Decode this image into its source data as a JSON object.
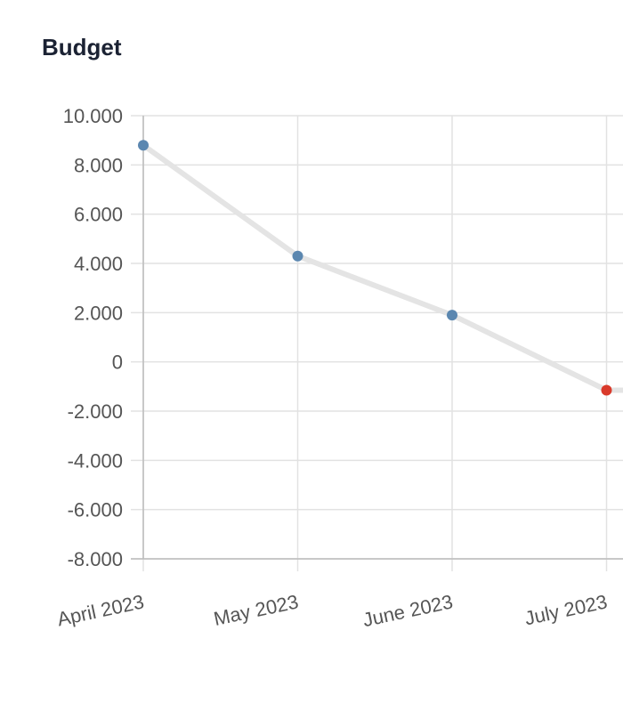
{
  "chart_data": {
    "type": "line",
    "title": "Budget",
    "xlabel": "",
    "ylabel": "",
    "categories": [
      "April 2023",
      "May 2023",
      "June 2023",
      "July 2023"
    ],
    "series": [
      {
        "values": [
          8800,
          4300,
          1900,
          -1150
        ]
      }
    ],
    "ylim": [
      -8000,
      10000
    ],
    "y_ticks": [
      10000,
      8000,
      6000,
      4000,
      2000,
      0,
      -2000,
      -4000,
      -6000,
      -8000
    ],
    "y_tick_labels": [
      "10.000",
      "8.000",
      "6.000",
      "4.000",
      "2.000",
      "0",
      "-2.000",
      "-4.000",
      "-6.000",
      "-8.000"
    ],
    "grid": true,
    "legend": "none",
    "colors": {
      "line": "#e4e4e4",
      "positive_point": "#5b87b0",
      "negative_point": "#d93a2b",
      "grid": "#e2e2e2",
      "axis": "#bbbbbb"
    }
  }
}
